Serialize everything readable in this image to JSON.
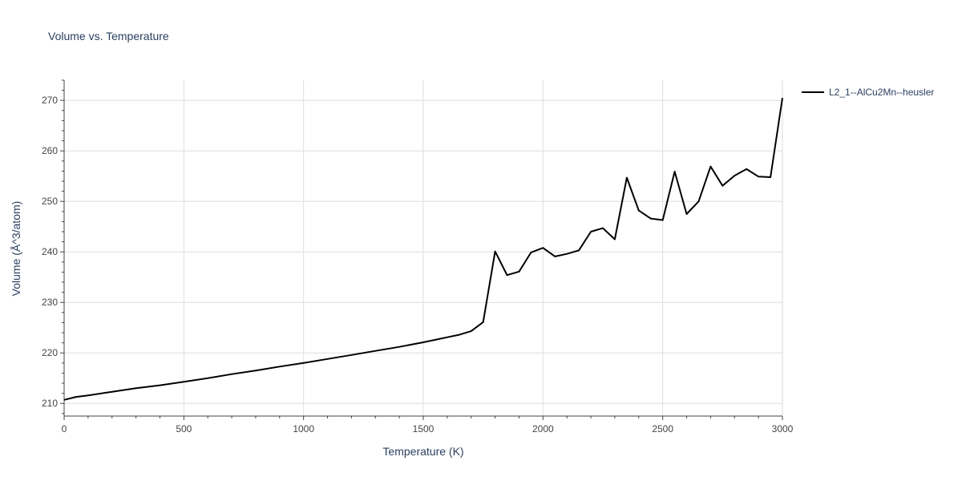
{
  "chart_data": {
    "type": "line",
    "title": "Volume vs. Temperature",
    "xlabel": "Temperature (K)",
    "ylabel": "Volume (Å^3/atom)",
    "xlim": [
      0,
      3000
    ],
    "ylim": [
      207.5,
      274
    ],
    "x_ticks": [
      0,
      500,
      1000,
      1500,
      2000,
      2500,
      3000
    ],
    "y_ticks": [
      210,
      220,
      230,
      240,
      250,
      260,
      270
    ],
    "grid": true,
    "legend_position": "top-right",
    "series": [
      {
        "name": "L2_1--AlCu2Mn--heusler",
        "color": "#000000",
        "x": [
          0,
          50,
          100,
          200,
          300,
          400,
          500,
          600,
          700,
          800,
          900,
          1000,
          1100,
          1200,
          1300,
          1400,
          1500,
          1550,
          1600,
          1650,
          1700,
          1750,
          1800,
          1850,
          1900,
          1950,
          2000,
          2050,
          2100,
          2150,
          2200,
          2250,
          2300,
          2350,
          2400,
          2450,
          2500,
          2550,
          2600,
          2650,
          2700,
          2750,
          2800,
          2850,
          2900,
          2950,
          3000
        ],
        "y": [
          210.7,
          211.3,
          211.6,
          212.3,
          213.0,
          213.6,
          214.3,
          215.0,
          215.8,
          216.5,
          217.3,
          218.0,
          218.8,
          219.6,
          220.4,
          221.2,
          222.1,
          222.6,
          223.1,
          223.6,
          224.3,
          226.1,
          240.1,
          235.4,
          236.1,
          239.9,
          240.8,
          239.1,
          239.6,
          240.3,
          244.0,
          244.7,
          242.5,
          254.7,
          248.2,
          246.6,
          246.3,
          255.9,
          247.5,
          250.0,
          256.9,
          253.1,
          255.1,
          256.4,
          254.9,
          254.8,
          270.5
        ]
      }
    ]
  }
}
